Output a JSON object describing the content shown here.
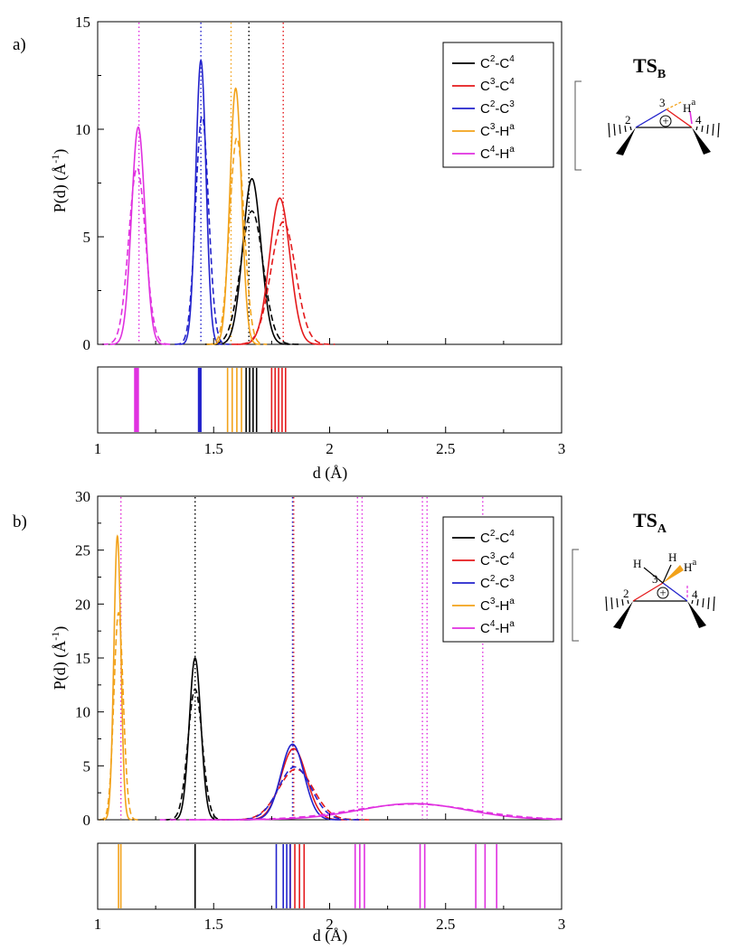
{
  "colors": {
    "C2-C4": "#000000",
    "C3-C4": "#e41a1c",
    "C2-C3": "#2222cc",
    "C3-Ha": "#f2a21a",
    "C4-Ha": "#e030e0"
  },
  "chart_data": [
    {
      "panel": "a)",
      "type": "line",
      "xlabel": "d (Å)",
      "ylabel_main": "P(d) (Å",
      "ylabel_exp": "-1",
      "ylabel_end": ")",
      "xlim": [
        1,
        3
      ],
      "ylim": [
        0,
        15
      ],
      "xticks": [
        1,
        1.5,
        2,
        2.5,
        3
      ],
      "xtick_labels": [
        "1",
        "1.5",
        "2",
        "2.5",
        "3"
      ],
      "yticks": [
        0,
        5,
        10,
        15
      ],
      "ytick_labels": [
        "0",
        "5",
        "10",
        "15"
      ],
      "legend_position": "top-right",
      "ts_label": "TS",
      "ts_sub": "B",
      "series": [
        {
          "key": "C2-C4",
          "name": "C2-C4",
          "solid": {
            "mu": 1.665,
            "sigma": 0.039,
            "peak": 7.7
          },
          "dashed": {
            "mu": 1.665,
            "sigma": 0.048,
            "peak": 6.2
          },
          "ref": [
            1.652
          ],
          "bars": [
            1.64,
            1.655,
            1.67,
            1.685
          ]
        },
        {
          "key": "C3-C4",
          "name": "C3-C4",
          "solid": {
            "mu": 1.785,
            "sigma": 0.044,
            "peak": 6.8
          },
          "dashed": {
            "mu": 1.8,
            "sigma": 0.053,
            "peak": 5.7
          },
          "ref": [
            1.8
          ],
          "bars": [
            1.75,
            1.765,
            1.78,
            1.795,
            1.81
          ]
        },
        {
          "key": "C2-C3",
          "name": "C2-C3",
          "solid": {
            "mu": 1.445,
            "sigma": 0.022,
            "peak": 13.2
          },
          "dashed": {
            "mu": 1.45,
            "sigma": 0.028,
            "peak": 10.6
          },
          "ref": [
            1.445
          ],
          "bars": [
            1.435,
            1.44,
            1.445
          ]
        },
        {
          "key": "C3-Ha",
          "name": "C3-Ha",
          "solid": {
            "mu": 1.595,
            "sigma": 0.025,
            "peak": 11.9
          },
          "dashed": {
            "mu": 1.6,
            "sigma": 0.031,
            "peak": 9.6
          },
          "ref": [
            1.575
          ],
          "bars": [
            1.56,
            1.58,
            1.6,
            1.62
          ]
        },
        {
          "key": "C4-Ha",
          "name": "C4-Ha",
          "solid": {
            "mu": 1.175,
            "sigma": 0.029,
            "peak": 10.1
          },
          "dashed": {
            "mu": 1.17,
            "sigma": 0.036,
            "peak": 8.2
          },
          "ref": [
            1.178
          ],
          "bars": [
            1.16,
            1.165,
            1.17,
            1.175
          ]
        }
      ]
    },
    {
      "panel": "b)",
      "type": "line",
      "xlabel": "d (Å)",
      "ylabel_main": "P(d) (Å",
      "ylabel_exp": "-1",
      "ylabel_end": ")",
      "xlim": [
        1,
        3
      ],
      "ylim": [
        0,
        30
      ],
      "xticks": [
        1,
        1.5,
        2,
        2.5,
        3
      ],
      "xtick_labels": [
        "1",
        "1.5",
        "2",
        "2.5",
        "3"
      ],
      "yticks": [
        0,
        5,
        10,
        15,
        20,
        25,
        30
      ],
      "ytick_labels": [
        "0",
        "5",
        "10",
        "15",
        "20",
        "25",
        "30"
      ],
      "legend_position": "top-right",
      "ts_label": "TS",
      "ts_sub": "A",
      "series": [
        {
          "key": "C2-C4",
          "name": "C2-C4",
          "solid": {
            "mu": 1.42,
            "sigma": 0.025,
            "peak": 15.0
          },
          "dashed": {
            "mu": 1.42,
            "sigma": 0.031,
            "peak": 12.1
          },
          "ref": [
            1.42
          ],
          "bars": [
            1.42
          ]
        },
        {
          "key": "C3-C4",
          "name": "C3-C4",
          "solid": {
            "mu": 1.845,
            "sigma": 0.055,
            "peak": 6.6
          },
          "dashed": {
            "mu": 1.855,
            "sigma": 0.075,
            "peak": 4.7
          },
          "ref": [
            1.845
          ],
          "bars": [
            1.83,
            1.85,
            1.87,
            1.89
          ]
        },
        {
          "key": "C2-C3",
          "name": "C2-C3",
          "solid": {
            "mu": 1.84,
            "sigma": 0.05,
            "peak": 7.0
          },
          "dashed": {
            "mu": 1.85,
            "sigma": 0.07,
            "peak": 4.9
          },
          "ref": [
            1.84
          ],
          "bars": [
            1.77,
            1.8,
            1.815,
            1.83
          ]
        },
        {
          "key": "C3-Ha",
          "name": "C3-Ha",
          "solid": {
            "mu": 1.085,
            "sigma": 0.015,
            "peak": 26.3
          },
          "dashed": {
            "mu": 1.09,
            "sigma": 0.02,
            "peak": 19.2
          },
          "ref": [
            1.1
          ],
          "bars": [
            1.09,
            1.1
          ]
        },
        {
          "key": "C4-Ha",
          "name": "C4-Ha",
          "broad": true,
          "solid": {
            "mu": 2.36,
            "sigma": 0.23,
            "peak": 1.5
          },
          "dashed": {
            "mu": 2.36,
            "sigma": 0.26,
            "peak": 1.45
          },
          "ref": [
            1.1,
            2.12,
            2.14,
            2.4,
            2.42,
            2.66
          ],
          "bars": [
            2.11,
            2.13,
            2.15,
            2.39,
            2.41,
            2.63,
            2.67,
            2.72
          ]
        }
      ]
    }
  ],
  "legend": [
    {
      "key": "C2-C4",
      "a": "C",
      "a_sup": "2",
      "b": "C",
      "b_sup": "4"
    },
    {
      "key": "C3-C4",
      "a": "C",
      "a_sup": "3",
      "b": "C",
      "b_sup": "4"
    },
    {
      "key": "C2-C3",
      "a": "C",
      "a_sup": "2",
      "b": "C",
      "b_sup": "3"
    },
    {
      "key": "C3-Ha",
      "a": "C",
      "a_sup": "3",
      "b": "H",
      "b_sup": "a"
    },
    {
      "key": "C4-Ha",
      "a": "C",
      "a_sup": "4",
      "b": "H",
      "b_sup": "a"
    }
  ],
  "molecule_labels": {
    "a": {
      "atoms": [
        "2",
        "3",
        "4"
      ],
      "h": "H",
      "h_sup": "a",
      "plus": "+"
    },
    "b": {
      "atoms": [
        "2",
        "3",
        "4"
      ],
      "h1": "H",
      "h2": "H",
      "h": "H",
      "h_sup": "a",
      "plus": "+"
    }
  }
}
